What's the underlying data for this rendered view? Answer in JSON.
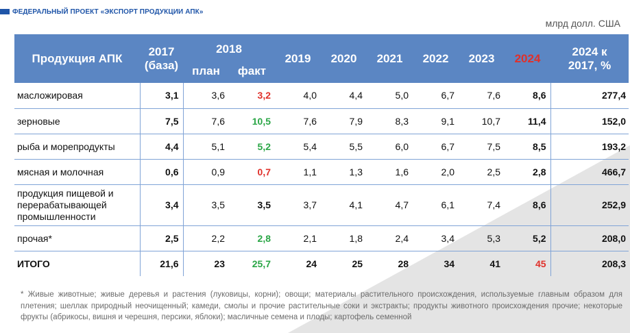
{
  "header": {
    "title": "ФЕДЕРАЛЬНЫЙ ПРОЕКТ «ЭКСПОРТ ПРОДУКЦИИ АПК»"
  },
  "unit": "млрд долл. США",
  "table": {
    "col_product": "Продукция АПК",
    "col_2017_line1": "2017",
    "col_2017_line2": "(база)",
    "col_2018": "2018",
    "col_2018_plan": "план",
    "col_2018_fact": "факт",
    "years": [
      "2019",
      "2020",
      "2021",
      "2022",
      "2023",
      "2024"
    ],
    "col_ratio_line1": "2024 к",
    "col_ratio_line2": "2017, %",
    "rows": [
      {
        "name": "масложировая",
        "v2017": "3,1",
        "plan": "3,6",
        "fact": "3,2",
        "fact_color": "red",
        "y2019": "4,0",
        "y2020": "4,4",
        "y2021": "5,0",
        "y2022": "6,7",
        "y2023": "7,6",
        "y2024": "8,6",
        "ratio": "277,4"
      },
      {
        "name": "зерновые",
        "v2017": "7,5",
        "plan": "7,6",
        "fact": "10,5",
        "fact_color": "green",
        "y2019": "7,6",
        "y2020": "7,9",
        "y2021": "8,3",
        "y2022": "9,1",
        "y2023": "10,7",
        "y2024": "11,4",
        "ratio": "152,0"
      },
      {
        "name": "рыба и морепродукты",
        "v2017": "4,4",
        "plan": "5,1",
        "fact": "5,2",
        "fact_color": "green",
        "y2019": "5,4",
        "y2020": "5,5",
        "y2021": "6,0",
        "y2022": "6,7",
        "y2023": "7,5",
        "y2024": "8,5",
        "ratio": "193,2"
      },
      {
        "name": "мясная и молочная",
        "v2017": "0,6",
        "plan": "0,9",
        "fact": "0,7",
        "fact_color": "red",
        "y2019": "1,1",
        "y2020": "1,3",
        "y2021": "1,6",
        "y2022": "2,0",
        "y2023": "2,5",
        "y2024": "2,8",
        "ratio": "466,7"
      },
      {
        "name": "продукция пищевой и перерабатывающей промышленности",
        "v2017": "3,4",
        "plan": "3,5",
        "fact": "3,5",
        "fact_color": "black",
        "y2019": "3,7",
        "y2020": "4,1",
        "y2021": "4,7",
        "y2022": "6,1",
        "y2023": "7,4",
        "y2024": "8,6",
        "ratio": "252,9"
      },
      {
        "name": "прочая*",
        "v2017": "2,5",
        "plan": "2,2",
        "fact": "2,8",
        "fact_color": "green",
        "y2019": "2,1",
        "y2020": "1,8",
        "y2021": "2,4",
        "y2022": "3,4",
        "y2023": "5,3",
        "y2024": "5,2",
        "ratio": "208,0"
      }
    ],
    "total": {
      "name": "ИТОГО",
      "v2017": "21,6",
      "plan": "23",
      "fact": "25,7",
      "y2019": "24",
      "y2020": "25",
      "y2021": "28",
      "y2022": "34",
      "y2023": "41",
      "y2024": "45",
      "ratio": "208,3"
    }
  },
  "footnote": "* Живые животные; живые деревья и растения (луковицы, корни); овощи; материалы растительного происхождения, используемые главным образом для плетения; шеллак природный неочищенный; камеди, смолы и прочие растительные соки и экстракты; продукты животного происхождения прочие; некоторые фрукты (абрикосы, вишня и черешня, персики, яблоки); масличные семена и плоды; картофель семенной",
  "colors": {
    "header_bg": "#5b86c3",
    "accent": "#1f55a8",
    "red": "#e0302a",
    "green": "#2aa646"
  }
}
